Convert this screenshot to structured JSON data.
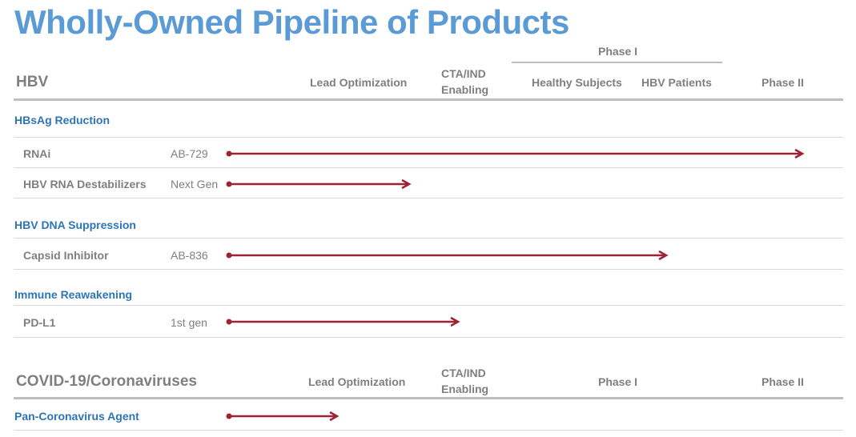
{
  "title": "Wholly-Owned Pipeline of Products",
  "colors": {
    "title": "#5b9bd5",
    "section": "#2e75b6",
    "arrow": "#9b2335",
    "text": "#7f7f7f",
    "rule": "#bfbfbf"
  },
  "hbv": {
    "heading": "HBV",
    "columns": {
      "lead_optimization": "Lead Optimization",
      "cta_line1": "CTA/IND",
      "cta_line2": "Enabling",
      "phase1_group": "Phase I",
      "healthy_subjects": "Healthy Subjects",
      "hbv_patients": "HBV Patients",
      "phase2": "Phase II"
    },
    "sections": [
      {
        "name": "HBsAg Reduction",
        "programs": [
          {
            "label": "RNAi",
            "asset": "AB-729",
            "progress": "Phase II"
          },
          {
            "label": "HBV RNA Destabilizers",
            "asset": "Next Gen",
            "progress": "Lead Optimization"
          }
        ]
      },
      {
        "name": "HBV DNA Suppression",
        "programs": [
          {
            "label": "Capsid Inhibitor",
            "asset": "AB-836",
            "progress": "HBV Patients"
          }
        ]
      },
      {
        "name": "Immune Reawakening",
        "programs": [
          {
            "label": "PD-L1",
            "asset": "1st gen",
            "progress": "CTA/IND Enabling"
          }
        ]
      }
    ]
  },
  "covid": {
    "heading": "COVID-19/Coronaviruses",
    "columns": {
      "lead_optimization": "Lead Optimization",
      "cta_line1": "CTA/IND",
      "cta_line2": "Enabling",
      "phase1": "Phase I",
      "phase2": "Phase II"
    },
    "sections": [
      {
        "name": "Pan-Coronavirus Agent",
        "progress": "Lead Optimization"
      }
    ]
  }
}
